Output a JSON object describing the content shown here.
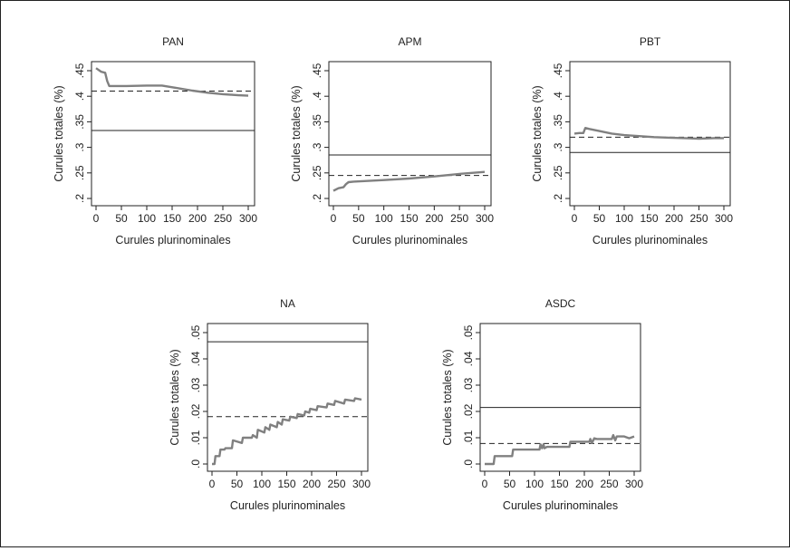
{
  "chart_data": [
    {
      "type": "line",
      "title": "PAN",
      "xlabel": "Curules plurinominales",
      "ylabel": "Curules totales (%)",
      "xlim": [
        0,
        300
      ],
      "ylim": [
        0.2,
        0.45
      ],
      "xticks": [
        0,
        50,
        100,
        150,
        200,
        250,
        300
      ],
      "xtick_labels": [
        "0",
        "50",
        "100",
        "150",
        "200",
        "250",
        "300"
      ],
      "yticks": [
        0.2,
        0.25,
        0.3,
        0.35,
        0.4,
        0.45
      ],
      "ytick_labels": [
        ".2",
        ".25",
        ".3",
        ".35",
        ".4",
        ".45"
      ],
      "series": [
        {
          "style": "gray-thick",
          "color": "#808080",
          "x": [
            0,
            10,
            18,
            22,
            26,
            60,
            100,
            130,
            160,
            190,
            220,
            250,
            280,
            300
          ],
          "y": [
            0.455,
            0.448,
            0.446,
            0.43,
            0.42,
            0.42,
            0.421,
            0.421,
            0.416,
            0.411,
            0.407,
            0.404,
            0.402,
            0.401
          ]
        }
      ],
      "hlines": [
        {
          "style": "dashed",
          "y": 0.41
        },
        {
          "style": "solid",
          "y": 0.333
        }
      ]
    },
    {
      "type": "line",
      "title": "APM",
      "xlabel": "Curules plurinominales",
      "ylabel": "Curules totales (%)",
      "xlim": [
        0,
        300
      ],
      "ylim": [
        0.2,
        0.45
      ],
      "xticks": [
        0,
        50,
        100,
        150,
        200,
        250,
        300
      ],
      "xtick_labels": [
        "0",
        "50",
        "100",
        "150",
        "200",
        "250",
        "300"
      ],
      "yticks": [
        0.2,
        0.25,
        0.3,
        0.35,
        0.4,
        0.45
      ],
      "ytick_labels": [
        ".2",
        ".25",
        ".3",
        ".35",
        ".4",
        ".45"
      ],
      "series": [
        {
          "style": "gray-thick",
          "color": "#808080",
          "x": [
            0,
            10,
            20,
            25,
            30,
            40,
            100,
            150,
            200,
            250,
            300
          ],
          "y": [
            0.215,
            0.22,
            0.222,
            0.228,
            0.232,
            0.233,
            0.236,
            0.239,
            0.243,
            0.248,
            0.252
          ]
        }
      ],
      "hlines": [
        {
          "style": "dashed",
          "y": 0.245
        },
        {
          "style": "solid",
          "y": 0.285
        }
      ]
    },
    {
      "type": "line",
      "title": "PBT",
      "xlabel": "Curules plurinominales",
      "ylabel": "Curules totales (%)",
      "xlim": [
        0,
        300
      ],
      "ylim": [
        0.2,
        0.45
      ],
      "xticks": [
        0,
        50,
        100,
        150,
        200,
        250,
        300
      ],
      "xtick_labels": [
        "0",
        "50",
        "100",
        "150",
        "200",
        "250",
        "300"
      ],
      "yticks": [
        0.2,
        0.25,
        0.3,
        0.35,
        0.4,
        0.45
      ],
      "ytick_labels": [
        ".2",
        ".25",
        ".3",
        ".35",
        ".4",
        ".45"
      ],
      "series": [
        {
          "style": "gray-thick",
          "color": "#808080",
          "x": [
            0,
            10,
            18,
            22,
            30,
            50,
            75,
            100,
            130,
            160,
            190,
            220,
            250,
            280,
            300
          ],
          "y": [
            0.327,
            0.328,
            0.328,
            0.338,
            0.336,
            0.332,
            0.327,
            0.324,
            0.322,
            0.32,
            0.319,
            0.318,
            0.317,
            0.318,
            0.318
          ]
        }
      ],
      "hlines": [
        {
          "style": "dashed",
          "y": 0.32
        },
        {
          "style": "solid",
          "y": 0.29
        }
      ]
    },
    {
      "type": "line",
      "title": "NA",
      "xlabel": "Curules plurinominales",
      "ylabel": "Curules totales (%)",
      "xlim": [
        0,
        300
      ],
      "ylim": [
        0,
        0.05
      ],
      "xticks": [
        0,
        50,
        100,
        150,
        200,
        250,
        300
      ],
      "xtick_labels": [
        "0",
        "50",
        "100",
        "150",
        "200",
        "250",
        "300"
      ],
      "yticks": [
        0,
        0.01,
        0.02,
        0.03,
        0.04,
        0.05
      ],
      "ytick_labels": [
        ".0",
        ".01",
        ".02",
        ".03",
        ".04",
        ".05"
      ],
      "series": [
        {
          "style": "gray-thick",
          "color": "#808080",
          "x": [
            0,
            5,
            7,
            15,
            17,
            25,
            27,
            40,
            42,
            60,
            62,
            80,
            82,
            90,
            92,
            105,
            107,
            115,
            117,
            130,
            132,
            140,
            142,
            155,
            157,
            170,
            172,
            185,
            187,
            195,
            197,
            210,
            212,
            230,
            232,
            245,
            247,
            265,
            267,
            285,
            287,
            300
          ],
          "y": [
            0,
            0,
            0.003,
            0.003,
            0.0055,
            0.0055,
            0.006,
            0.006,
            0.009,
            0.008,
            0.01,
            0.01,
            0.011,
            0.01,
            0.013,
            0.012,
            0.014,
            0.013,
            0.015,
            0.014,
            0.016,
            0.015,
            0.017,
            0.0165,
            0.018,
            0.0175,
            0.019,
            0.0185,
            0.02,
            0.0195,
            0.021,
            0.0205,
            0.022,
            0.0215,
            0.023,
            0.0225,
            0.024,
            0.023,
            0.0245,
            0.024,
            0.025,
            0.0245
          ]
        }
      ],
      "hlines": [
        {
          "style": "dashed",
          "y": 0.018
        },
        {
          "style": "solid",
          "y": 0.0465
        }
      ]
    },
    {
      "type": "line",
      "title": "ASDC",
      "xlabel": "Curules plurinominales",
      "ylabel": "Curules totales (%)",
      "xlim": [
        0,
        300
      ],
      "ylim": [
        0,
        0.05
      ],
      "xticks": [
        0,
        50,
        100,
        150,
        200,
        250,
        300
      ],
      "xtick_labels": [
        "0",
        "50",
        "100",
        "150",
        "200",
        "250",
        "300"
      ],
      "yticks": [
        0,
        0.01,
        0.02,
        0.03,
        0.04,
        0.05
      ],
      "ytick_labels": [
        ".0",
        ".01",
        ".02",
        ".03",
        ".04",
        ".05"
      ],
      "series": [
        {
          "style": "gray-thick",
          "color": "#808080",
          "x": [
            0,
            18,
            20,
            55,
            57,
            110,
            112,
            115,
            118,
            120,
            125,
            130,
            170,
            172,
            210,
            212,
            215,
            220,
            225,
            255,
            258,
            262,
            265,
            280,
            290,
            300
          ],
          "y": [
            0,
            0,
            0.003,
            0.003,
            0.0055,
            0.0055,
            0.0075,
            0.006,
            0.0075,
            0.006,
            0.0065,
            0.0065,
            0.0065,
            0.0085,
            0.0085,
            0.0095,
            0.008,
            0.0098,
            0.0095,
            0.0095,
            0.011,
            0.009,
            0.0105,
            0.0105,
            0.0098,
            0.0105
          ]
        }
      ],
      "hlines": [
        {
          "style": "dashed",
          "y": 0.0078
        },
        {
          "style": "solid",
          "y": 0.0215
        }
      ]
    }
  ]
}
